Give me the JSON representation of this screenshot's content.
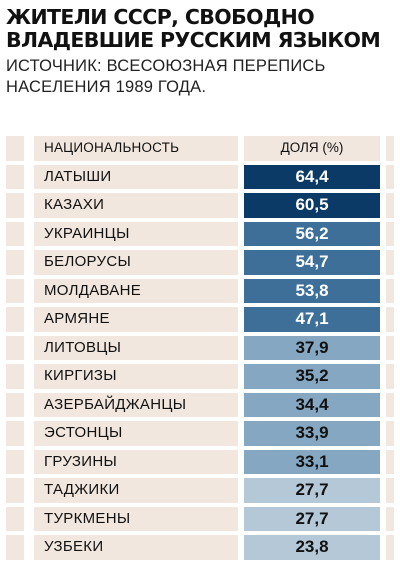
{
  "title": "ЖИТЕЛИ СССР, СВОБОДНО ВЛАДЕВШИЕ РУССКИМ ЯЗЫКОМ",
  "subtitle": "ИСТОЧНИК: ВСЕСОЮЗНАЯ ПЕРЕПИСЬ НАСЕЛЕНИЯ 1989 ГОДА.",
  "header": {
    "name": "НАЦИОНАЛЬНОСТЬ",
    "value": "ДОЛЯ (%)"
  },
  "colors": {
    "row_bg": "#f1e7df",
    "dark": "#0b3a67",
    "mid": "#3d6f98",
    "light": "#86a7c1",
    "lightest": "#b4c8d8"
  },
  "rows": [
    {
      "name": "ЛАТЫШИ",
      "value": "64,4",
      "shade": "dark"
    },
    {
      "name": "КАЗАХИ",
      "value": "60,5",
      "shade": "dark"
    },
    {
      "name": "УКРАИНЦЫ",
      "value": "56,2",
      "shade": "mid"
    },
    {
      "name": "БЕЛОРУСЫ",
      "value": "54,7",
      "shade": "mid"
    },
    {
      "name": "МОЛДАВАНЕ",
      "value": "53,8",
      "shade": "mid"
    },
    {
      "name": "АРМЯНЕ",
      "value": "47,1",
      "shade": "mid"
    },
    {
      "name": "ЛИТОВЦЫ",
      "value": "37,9",
      "shade": "light"
    },
    {
      "name": "КИРГИЗЫ",
      "value": "35,2",
      "shade": "light"
    },
    {
      "name": "АЗЕРБАЙДЖАНЦЫ",
      "value": "34,4",
      "shade": "light"
    },
    {
      "name": "ЭСТОНЦЫ",
      "value": "33,9",
      "shade": "light"
    },
    {
      "name": "ГРУЗИНЫ",
      "value": "33,1",
      "shade": "light"
    },
    {
      "name": "ТАДЖИКИ",
      "value": "27,7",
      "shade": "lightest"
    },
    {
      "name": "ТУРКМЕНЫ",
      "value": "27,7",
      "shade": "lightest"
    },
    {
      "name": "УЗБЕКИ",
      "value": "23,8",
      "shade": "lightest"
    }
  ],
  "chart_data": {
    "type": "table",
    "title": "ЖИТЕЛИ СССР, СВОБОДНО ВЛАДЕВШИЕ РУССКИМ ЯЗЫКОМ",
    "subtitle": "ИСТОЧНИК: ВСЕСОЮЗНАЯ ПЕРЕПИСЬ НАСЕЛЕНИЯ 1989 ГОДА.",
    "columns": [
      "НАЦИОНАЛЬНОСТЬ",
      "ДОЛЯ (%)"
    ],
    "categories": [
      "ЛАТЫШИ",
      "КАЗАХИ",
      "УКРАИНЦЫ",
      "БЕЛОРУСЫ",
      "МОЛДАВАНЕ",
      "АРМЯНЕ",
      "ЛИТОВЦЫ",
      "КИРГИЗЫ",
      "АЗЕРБАЙДЖАНЦЫ",
      "ЭСТОНЦЫ",
      "ГРУЗИНЫ",
      "ТАДЖИКИ",
      "ТУРКМЕНЫ",
      "УЗБЕКИ"
    ],
    "values": [
      64.4,
      60.5,
      56.2,
      54.7,
      53.8,
      47.1,
      37.9,
      35.2,
      34.4,
      33.9,
      33.1,
      27.7,
      27.7,
      23.8
    ]
  }
}
